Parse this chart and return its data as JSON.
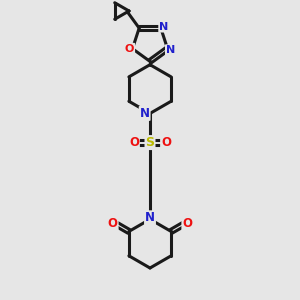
{
  "background_color": "#e6e6e6",
  "bond_color": "#1a1a1a",
  "nitrogen_color": "#2020cc",
  "oxygen_color": "#ee1111",
  "sulfur_color": "#bbbb00",
  "line_width": 2.2,
  "fig_width": 3.0,
  "fig_height": 3.0,
  "dpi": 100,
  "xlim": [
    0,
    10
  ],
  "ylim": [
    0,
    10
  ]
}
